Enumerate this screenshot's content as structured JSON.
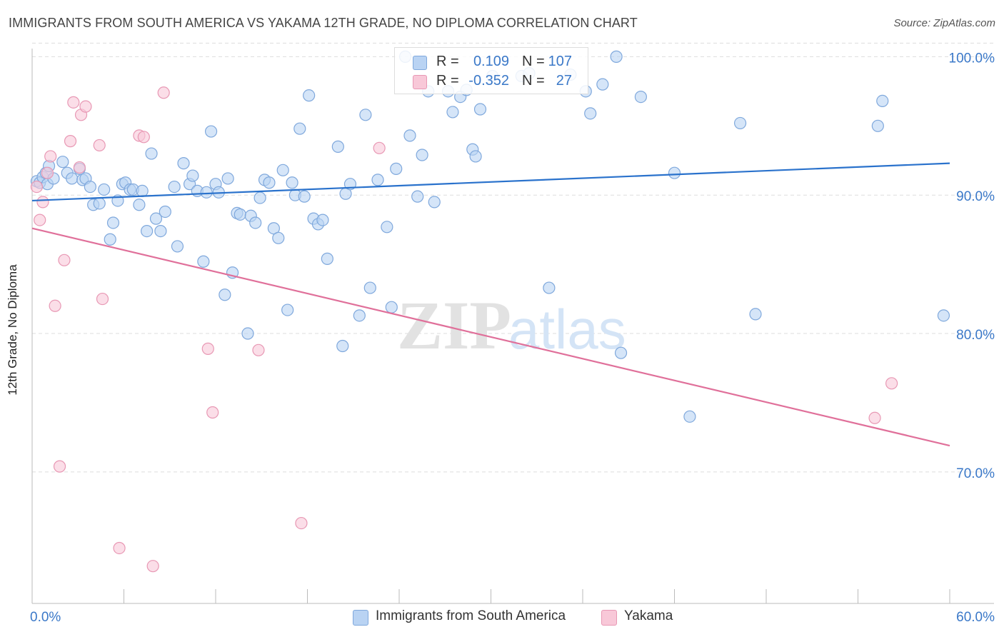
{
  "title": "IMMIGRANTS FROM SOUTH AMERICA VS YAKAMA 12TH GRADE, NO DIPLOMA CORRELATION CHART",
  "source": "Source: ZipAtlas.com",
  "watermark": {
    "zip": "ZIP",
    "atlas": "atlas"
  },
  "legend": {
    "r_label": "R =",
    "n_label": "N =",
    "series": [
      {
        "name": "Immigrants from South America",
        "r": "0.109",
        "n": "107"
      },
      {
        "name": "Yakama",
        "r": "-0.352",
        "n": "27"
      }
    ]
  },
  "colors": {
    "blue_fill": "#b9d3f3",
    "blue_stroke": "#7fa8dc",
    "blue_line": "#2a72cc",
    "pink_fill": "#f8c8d8",
    "pink_stroke": "#e898b4",
    "pink_line": "#e0709a",
    "axis_text": "#3a78c8",
    "grid": "#dddddd"
  },
  "chart_data": {
    "type": "scatter",
    "ylabel": "12th Grade, No Diploma",
    "xlabel": "",
    "xlim": [
      0,
      60
    ],
    "ylim": [
      60.5,
      101
    ],
    "x_tick_labels": [
      "0.0%",
      "60.0%"
    ],
    "y_ticks": [
      70,
      80,
      90,
      100
    ],
    "y_tick_labels": [
      "70.0%",
      "80.0%",
      "90.0%",
      "100.0%"
    ],
    "grid": true,
    "legend_position": "top-center",
    "series": [
      {
        "name": "Immigrants from South America",
        "trend": {
          "x": [
            0,
            60
          ],
          "y": [
            89.6,
            92.3
          ]
        },
        "points": [
          [
            0.3,
            91.0
          ],
          [
            0.5,
            90.9
          ],
          [
            0.7,
            91.3
          ],
          [
            0.9,
            91.6
          ],
          [
            1.0,
            90.8
          ],
          [
            1.1,
            92.1
          ],
          [
            1.4,
            91.2
          ],
          [
            2.0,
            92.4
          ],
          [
            2.3,
            91.6
          ],
          [
            2.6,
            91.2
          ],
          [
            3.1,
            91.9
          ],
          [
            3.3,
            91.1
          ],
          [
            3.5,
            91.2
          ],
          [
            3.8,
            90.6
          ],
          [
            4.0,
            89.3
          ],
          [
            4.4,
            89.4
          ],
          [
            4.7,
            90.4
          ],
          [
            5.1,
            86.8
          ],
          [
            5.3,
            88.0
          ],
          [
            5.6,
            89.6
          ],
          [
            5.9,
            90.8
          ],
          [
            6.1,
            90.9
          ],
          [
            6.4,
            90.4
          ],
          [
            6.6,
            90.4
          ],
          [
            7.0,
            89.3
          ],
          [
            7.2,
            90.3
          ],
          [
            7.5,
            87.4
          ],
          [
            7.8,
            93.0
          ],
          [
            8.1,
            88.3
          ],
          [
            8.4,
            87.4
          ],
          [
            8.7,
            88.8
          ],
          [
            9.3,
            90.6
          ],
          [
            9.5,
            86.3
          ],
          [
            9.9,
            92.3
          ],
          [
            10.3,
            90.8
          ],
          [
            10.5,
            91.4
          ],
          [
            10.8,
            90.3
          ],
          [
            11.2,
            85.2
          ],
          [
            11.4,
            90.2
          ],
          [
            11.7,
            94.6
          ],
          [
            12.0,
            90.8
          ],
          [
            12.2,
            90.2
          ],
          [
            12.6,
            82.8
          ],
          [
            12.8,
            91.2
          ],
          [
            13.1,
            84.4
          ],
          [
            13.4,
            88.7
          ],
          [
            13.6,
            88.6
          ],
          [
            14.1,
            80.0
          ],
          [
            14.3,
            88.5
          ],
          [
            14.6,
            88.0
          ],
          [
            14.9,
            89.8
          ],
          [
            15.2,
            91.1
          ],
          [
            15.5,
            90.9
          ],
          [
            15.8,
            87.6
          ],
          [
            16.1,
            86.9
          ],
          [
            16.4,
            91.8
          ],
          [
            16.7,
            81.7
          ],
          [
            17.0,
            90.9
          ],
          [
            17.2,
            90.0
          ],
          [
            17.5,
            94.8
          ],
          [
            17.8,
            89.9
          ],
          [
            18.1,
            97.2
          ],
          [
            18.4,
            88.3
          ],
          [
            18.7,
            87.9
          ],
          [
            19.0,
            88.2
          ],
          [
            19.3,
            85.4
          ],
          [
            20.0,
            93.5
          ],
          [
            20.3,
            79.1
          ],
          [
            20.5,
            90.1
          ],
          [
            20.8,
            90.8
          ],
          [
            21.4,
            81.3
          ],
          [
            21.8,
            95.8
          ],
          [
            22.1,
            83.3
          ],
          [
            22.6,
            91.1
          ],
          [
            23.2,
            87.7
          ],
          [
            23.5,
            81.9
          ],
          [
            23.8,
            91.9
          ],
          [
            24.4,
            100.0
          ],
          [
            24.7,
            94.3
          ],
          [
            25.2,
            89.9
          ],
          [
            25.5,
            92.9
          ],
          [
            25.9,
            97.5
          ],
          [
            26.3,
            89.5
          ],
          [
            27.2,
            97.5
          ],
          [
            27.5,
            96.0
          ],
          [
            28.0,
            97.1
          ],
          [
            28.4,
            97.6
          ],
          [
            28.8,
            93.3
          ],
          [
            29.0,
            92.8
          ],
          [
            29.3,
            96.2
          ],
          [
            30.1,
            98.6
          ],
          [
            32.0,
            98.6
          ],
          [
            32.5,
            98.8
          ],
          [
            33.8,
            83.3
          ],
          [
            35.2,
            98.7
          ],
          [
            36.2,
            97.5
          ],
          [
            36.5,
            95.9
          ],
          [
            37.3,
            98.0
          ],
          [
            38.2,
            100.0
          ],
          [
            38.5,
            78.6
          ],
          [
            39.8,
            97.1
          ],
          [
            42.0,
            91.6
          ],
          [
            43.0,
            74.0
          ],
          [
            46.3,
            95.2
          ],
          [
            47.3,
            81.4
          ],
          [
            55.3,
            95.0
          ],
          [
            55.6,
            96.8
          ],
          [
            59.6,
            81.3
          ]
        ]
      },
      {
        "name": "Yakama",
        "trend": {
          "x": [
            0,
            60
          ],
          "y": [
            87.6,
            71.9
          ]
        },
        "points": [
          [
            0.3,
            90.6
          ],
          [
            0.5,
            88.2
          ],
          [
            0.7,
            89.5
          ],
          [
            1.0,
            91.6
          ],
          [
            1.2,
            92.8
          ],
          [
            1.5,
            82.0
          ],
          [
            1.8,
            70.4
          ],
          [
            2.1,
            85.3
          ],
          [
            2.5,
            93.9
          ],
          [
            2.7,
            96.7
          ],
          [
            3.1,
            92.0
          ],
          [
            3.2,
            95.8
          ],
          [
            3.5,
            96.4
          ],
          [
            4.4,
            93.6
          ],
          [
            4.6,
            82.5
          ],
          [
            5.7,
            64.5
          ],
          [
            7.0,
            94.3
          ],
          [
            7.3,
            94.2
          ],
          [
            7.9,
            63.2
          ],
          [
            8.6,
            97.4
          ],
          [
            11.5,
            78.9
          ],
          [
            11.8,
            74.3
          ],
          [
            14.8,
            78.8
          ],
          [
            17.6,
            66.3
          ],
          [
            22.7,
            93.4
          ],
          [
            55.1,
            73.9
          ],
          [
            56.2,
            76.4
          ]
        ]
      }
    ]
  }
}
